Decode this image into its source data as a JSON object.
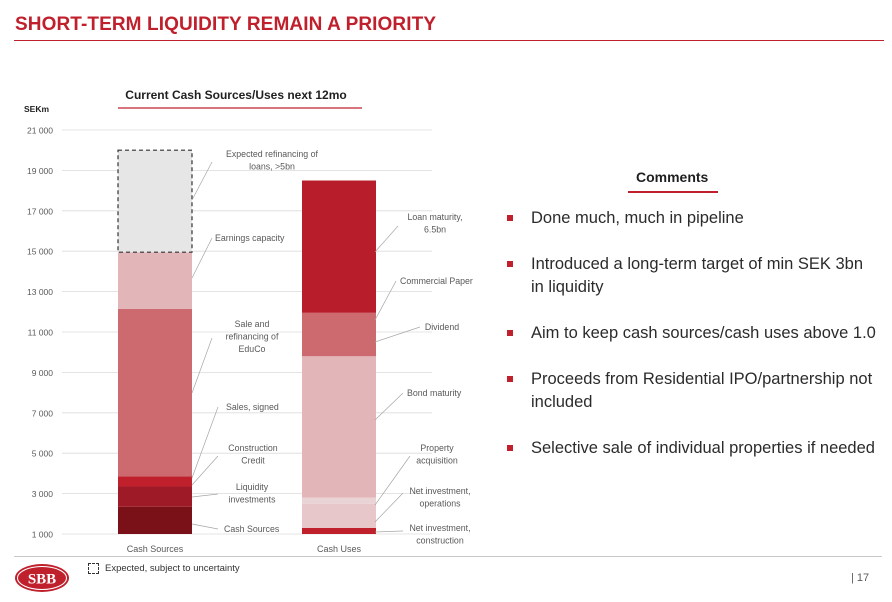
{
  "page": {
    "title": "SHORT-TERM LIQUIDITY REMAIN A PRIORITY",
    "page_number": "| 17",
    "logo_text": "SBB",
    "footnote": "Expected, subject to uncertainty"
  },
  "comments": {
    "heading": "Comments",
    "bullets": [
      "Done much, much in pipeline",
      "Introduced a long-term target of min SEK 3bn in liquidity",
      "Aim to keep cash sources/cash uses above 1.0",
      "Proceeds from Residential IPO/partnership not included",
      "Selective sale of individual properties if needed"
    ]
  },
  "colors": {
    "brand": "#c0202c"
  },
  "chart_data": {
    "type": "bar",
    "stacked": true,
    "title": "Current Cash Sources/Uses next 12mo",
    "ylabel": "SEKm",
    "ylim": [
      1000,
      21000
    ],
    "yticks": [
      1000,
      3000,
      5000,
      7000,
      9000,
      11000,
      13000,
      15000,
      17000,
      19000,
      21000
    ],
    "ytick_labels": [
      "1 000",
      "3 000",
      "5 000",
      "7 000",
      "9 000",
      "11 000",
      "13 000",
      "15 000",
      "17 000",
      "19 000",
      "21 000"
    ],
    "gridlines": true,
    "categories": [
      "Cash Sources",
      "Cash Uses"
    ],
    "bars": [
      {
        "category": "Cash Sources",
        "segments": [
          {
            "name": "Cash Sources",
            "value": 1350,
            "color": "#7a1119"
          },
          {
            "name": "Liquidity investments",
            "value": 1000,
            "color": "#9e1a26"
          },
          {
            "name": "Construction Credit",
            "value": 500,
            "color": "#c0202c"
          },
          {
            "name": "Sales, signed",
            "value": 0,
            "color": "#d8535c"
          },
          {
            "name": "Sale and refinancing of EduCo",
            "value": 8300,
            "color": "#cc6a70"
          },
          {
            "name": "Earnings capacity",
            "value": 2800,
            "color": "#e2b5b8"
          },
          {
            "name": "Expected refinancing of loans, >5bn",
            "value": 5050,
            "color": "#e6e6e6",
            "expected": true
          }
        ]
      },
      {
        "category": "Cash Uses",
        "segments": [
          {
            "name": "Net investment, construction",
            "value": 300,
            "color": "#c0202c"
          },
          {
            "name": "Net investment, operations",
            "value": 1200,
            "color": "#e7c7c9"
          },
          {
            "name": "Property acquisition",
            "value": 300,
            "color": "#ead3d5"
          },
          {
            "name": "Bond maturity",
            "value": 7000,
            "color": "#e2b5b8"
          },
          {
            "name": "Dividend",
            "value": 2150,
            "color": "#cc6a70"
          },
          {
            "name": "Commercial Paper",
            "value": 0,
            "color": "#c0202c"
          },
          {
            "name": "Loan maturity, 6.5bn",
            "value": 6550,
            "color": "#b81d2b"
          }
        ]
      }
    ],
    "annotations": [
      {
        "text": [
          "Expected refinancing of",
          "loans, >5bn"
        ]
      },
      {
        "text": [
          "Earnings capacity"
        ]
      },
      {
        "text": [
          "Sale and",
          "refinancing of",
          "EduCo"
        ]
      },
      {
        "text": [
          "Sales, signed"
        ]
      },
      {
        "text": [
          "Construction",
          "Credit"
        ]
      },
      {
        "text": [
          "Liquidity",
          "investments"
        ]
      },
      {
        "text": [
          "Cash Sources"
        ]
      },
      {
        "text": [
          "Loan maturity,",
          "6.5bn"
        ]
      },
      {
        "text": [
          "Commercial Paper"
        ]
      },
      {
        "text": [
          "Dividend"
        ]
      },
      {
        "text": [
          "Bond maturity"
        ]
      },
      {
        "text": [
          "Property",
          "acquisition"
        ]
      },
      {
        "text": [
          "Net investment,",
          "operations"
        ]
      },
      {
        "text": [
          "Net investment,",
          "construction"
        ]
      }
    ]
  }
}
